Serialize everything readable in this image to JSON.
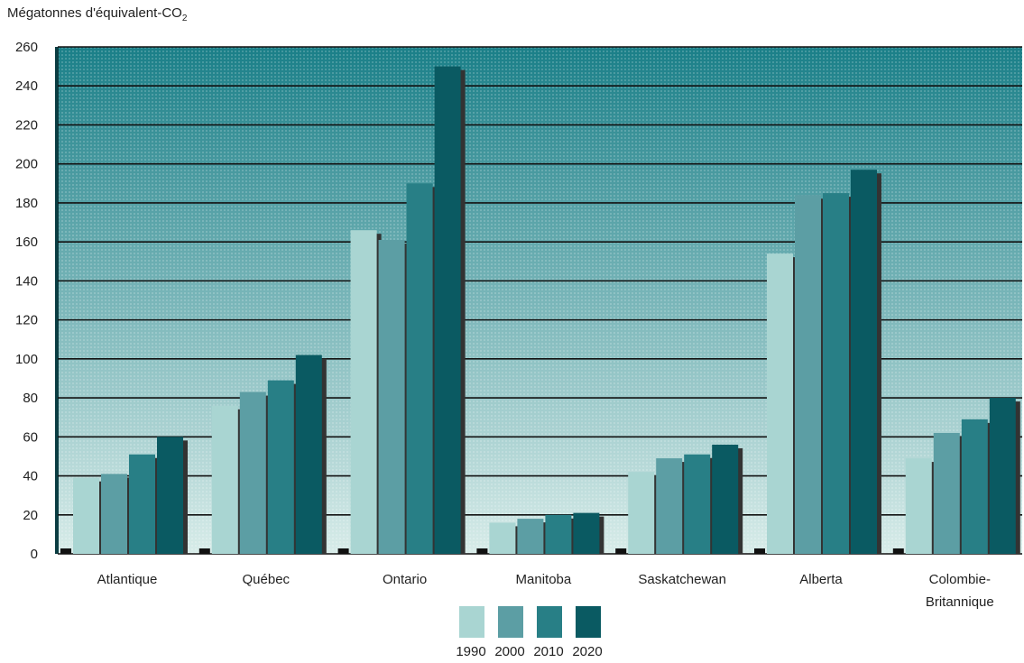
{
  "chart_data": {
    "type": "bar",
    "ylabel_main": "Mégatonnes d'équivalent-CO",
    "ylabel_sub": "2",
    "ylim": [
      0,
      260
    ],
    "yticks": [
      0,
      20,
      40,
      60,
      80,
      100,
      120,
      140,
      160,
      180,
      200,
      220,
      240,
      260
    ],
    "grid": true,
    "legend_position": "bottom-center",
    "categories": [
      [
        "Atlantique"
      ],
      [
        "Québec"
      ],
      [
        "Ontario"
      ],
      [
        "Manitoba"
      ],
      [
        "Saskatchewan"
      ],
      [
        "Alberta"
      ],
      [
        "Colombie-",
        "Britannique"
      ]
    ],
    "series": [
      {
        "name": "1990",
        "color": "#a9d5d2",
        "values": [
          39,
          76,
          166,
          16,
          42,
          154,
          49
        ]
      },
      {
        "name": "2000",
        "color": "#5c9ea4",
        "values": [
          41,
          83,
          161,
          18,
          49,
          184,
          62
        ]
      },
      {
        "name": "2010",
        "color": "#287f86",
        "values": [
          51,
          89,
          190,
          20,
          51,
          185,
          69
        ]
      },
      {
        "name": "2020",
        "color": "#0a5a62",
        "values": [
          60,
          102,
          250,
          21,
          56,
          197,
          80
        ]
      }
    ],
    "colors": {
      "plot_top": "#1a7f88",
      "plot_bottom": "#d8ece9",
      "grid": "#111111",
      "bar_shadow": "#333333"
    }
  }
}
